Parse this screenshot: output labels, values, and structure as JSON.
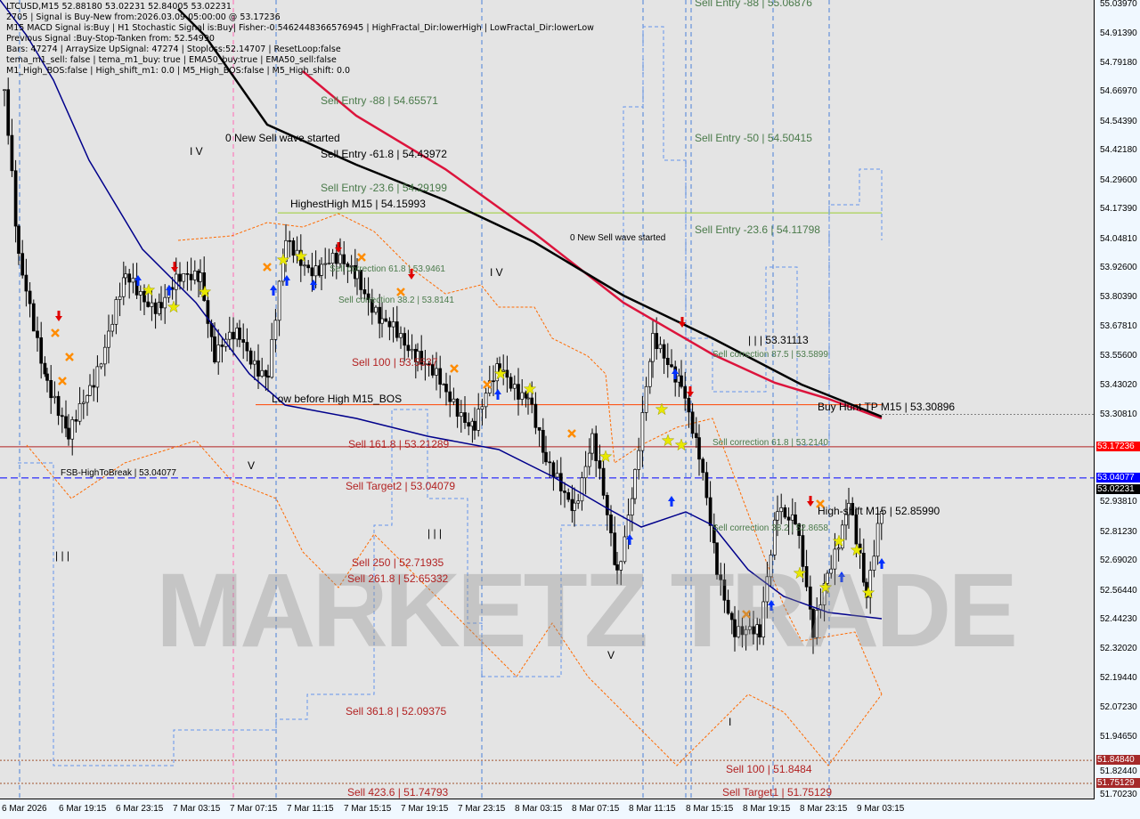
{
  "header": {
    "lines": [
      "LTCUSD,M15  52.88180 53.02231 52.84005 53.02231",
      "2705 | Signal is Buy-New from:2026.03.09 05:00:00 @ 53.17236",
      "M15 MACD Signal is:Buy | H1 Stochastic Signal is:Buy| Fisher:-0.5462448366576945 | HighFractal_Dir:lowerHigh | LowFractal_Dir:lowerLow",
      "Previous Signal :Buy-Stop-Tanken from: 52.54990",
      "Bars: 47274 | ArraySize UpSignal: 47274 | Stoploss:52.14707 | ResetLoop:false",
      "tema_m1_sell: false | tema_m1_buy: true | EMA50_buy:true | EMA50_sell:false",
      "M1_High_BOS:false | High_shift_m1: 0.0 | M5_High_BOS:false | M5_High_shift: 0.0"
    ]
  },
  "watermark": "MARKETZ TRADE",
  "annotations": [
    "Sell Entry -88 | 55.06876",
    "Sell Entry -88 | 54.65571",
    "0 New Sell wave started",
    "Sell Entry -61.8 | 54.43972",
    "Sell Entry -50 | 54.50415",
    "Sell Entry -23.6 | 54.29199",
    "HighestHigh   M15 | 54.15993",
    "0 New Sell wave started",
    "Sell Entry -23.6 | 54.11798",
    "Sell correction 61.8 | 53.9461",
    "Sell correction 38.2 | 53.8141",
    "| | | 53.31113",
    "Sell correction 87.5 | 53.5899",
    "Sell 100 | 53.5537",
    "Low before High   M15_BOS",
    "Buy Hunt TP M15 | 53.30896",
    "Sell correction 61.8 | 53.2140",
    "Sell 161.8 | 53.21289",
    "FSB-HighToBreak | 53.04077",
    "Sell Target2 | 53.04079",
    "High-shift M15 | 52.85990",
    "Sell correction 38.2 | 52.8658",
    "Sell  250 | 52.71935",
    "Sell  261.8 | 52.65332",
    "Sell  361.8 | 52.09375",
    "Sell 100 | 51.8484",
    "Sell  423.6 | 51.74793",
    "Sell Target1 | 51.75129",
    "I V",
    "I V",
    "V",
    "V",
    "| | |",
    "| | |",
    "I"
  ],
  "chart_data": {
    "type": "candlestick",
    "symbol": "LTCUSD",
    "timeframe": "M15",
    "ylim": [
      51.7023,
      55.0397
    ],
    "y_ticks": [
      "55.03970",
      "54.91390",
      "54.79180",
      "54.66970",
      "54.54390",
      "54.42180",
      "54.29600",
      "54.17390",
      "54.04810",
      "53.92600",
      "53.80390",
      "53.67810",
      "53.55600",
      "53.43020",
      "53.30810",
      "52.93810",
      "52.81230",
      "52.69020",
      "52.56440",
      "52.44230",
      "52.32020",
      "52.19440",
      "52.07230",
      "51.94650",
      "51.82440",
      "51.70230"
    ],
    "x_ticks": [
      "6 Mar 2026",
      "6 Mar 19:15",
      "6 Mar 23:15",
      "7 Mar 03:15",
      "7 Mar 07:15",
      "7 Mar 11:15",
      "7 Mar 15:15",
      "7 Mar 19:15",
      "7 Mar 23:15",
      "8 Mar 03:15",
      "8 Mar 07:15",
      "8 Mar 11:15",
      "8 Mar 15:15",
      "8 Mar 19:15",
      "8 Mar 23:15",
      "9 Mar 03:15"
    ],
    "price_tags": [
      {
        "value": "53.17236",
        "color": "#ff0000"
      },
      {
        "value": "53.04077",
        "color": "#0000ff"
      },
      {
        "value": "53.02231",
        "color": "#000000"
      },
      {
        "value": "51.84840",
        "color": "#a52a2a"
      },
      {
        "value": "51.75129",
        "color": "#a52a2a"
      }
    ],
    "levels": [
      {
        "price": 54.15993,
        "color": "#9acd32"
      },
      {
        "price": 53.35,
        "color": "#ff4500"
      },
      {
        "price": 53.30896,
        "color": "#808080"
      },
      {
        "price": 53.17236,
        "color": "#b22222"
      },
      {
        "price": 53.04077,
        "color": "#0000ff"
      },
      {
        "price": 51.8484,
        "color": "#a0522d"
      },
      {
        "price": 51.75129,
        "color": "#a0522d"
      }
    ],
    "price_path": [
      [
        "6 Mar 15:15",
        54.68
      ],
      [
        "6 Mar 16:15",
        53.93
      ],
      [
        "6 Mar 18:15",
        53.48
      ],
      [
        "6 Mar 19:45",
        53.18
      ],
      [
        "6 Mar 21:15",
        53.44
      ],
      [
        "6 Mar 23:45",
        53.86
      ],
      [
        "7 Mar 02:15",
        53.78
      ],
      [
        "7 Mar 05:00",
        53.93
      ],
      [
        "7 Mar 06:00",
        53.56
      ],
      [
        "7 Mar 07:45",
        53.63
      ],
      [
        "7 Mar 09:45",
        53.48
      ],
      [
        "7 Mar 11:00",
        54.01
      ],
      [
        "7 Mar 13:30",
        53.93
      ],
      [
        "7 Mar 16:00",
        53.93
      ],
      [
        "7 Mar 17:45",
        53.67
      ],
      [
        "7 Mar 20:15",
        53.59
      ],
      [
        "7 Mar 22:15",
        53.37
      ],
      [
        "8 Mar 00:15",
        53.29
      ],
      [
        "8 Mar 02:00",
        53.48
      ],
      [
        "8 Mar 04:00",
        53.41
      ],
      [
        "8 Mar 05:15",
        53.07
      ],
      [
        "8 Mar 07:15",
        52.95
      ],
      [
        "8 Mar 08:30",
        53.18
      ],
      [
        "8 Mar 10:15",
        52.65
      ],
      [
        "8 Mar 11:30",
        53.07
      ],
      [
        "8 Mar 12:45",
        53.59
      ],
      [
        "8 Mar 14:45",
        53.48
      ],
      [
        "8 Mar 16:00",
        53.11
      ],
      [
        "8 Mar 17:15",
        52.65
      ],
      [
        "8 Mar 18:30",
        52.43
      ],
      [
        "8 Mar 20:15",
        52.35
      ],
      [
        "8 Mar 21:30",
        52.95
      ],
      [
        "8 Mar 22:45",
        52.88
      ],
      [
        "9 Mar 00:00",
        52.35
      ],
      [
        "9 Mar 01:00",
        52.65
      ],
      [
        "9 Mar 02:30",
        52.95
      ],
      [
        "9 Mar 03:45",
        52.5
      ],
      [
        "9 Mar 05:00",
        53.02
      ]
    ],
    "colors": {
      "ma_slow": "#000000",
      "ma_mid": "#dc143c",
      "ma_fast": "#00008b",
      "bull": "#ffffff",
      "bear": "#000000"
    }
  }
}
